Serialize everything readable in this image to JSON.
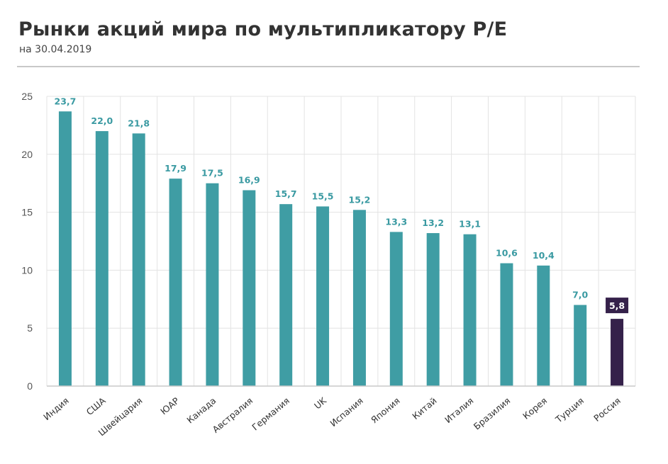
{
  "header": {
    "title": "Рынки акций мира по мультипликатору P/E",
    "subtitle": "на 30.04.2019"
  },
  "colors": {
    "bar": "#3f9da4",
    "highlight_bar": "#35214a",
    "label": "#3a9aa2",
    "highlight_label_text": "#ffffff",
    "grid": "#e3e3e3"
  },
  "chart_data": {
    "type": "bar",
    "title": "Рынки акций мира по мультипликатору P/E",
    "subtitle": "на 30.04.2019",
    "xlabel": "",
    "ylabel": "",
    "ylim": [
      0,
      25
    ],
    "yticks": [
      "0",
      "5",
      "10",
      "15",
      "20",
      "25"
    ],
    "grid": true,
    "legend": "none",
    "categories": [
      "Индия",
      "США",
      "Швейцария",
      "ЮАР",
      "Канада",
      "Австралия",
      "Германия",
      "UK",
      "Испания",
      "Япония",
      "Китай",
      "Италия",
      "Бразилия",
      "Корея",
      "Турция",
      "Россия"
    ],
    "values": [
      23.7,
      22.0,
      21.8,
      17.9,
      17.5,
      16.9,
      15.7,
      15.5,
      15.2,
      13.3,
      13.2,
      13.1,
      10.6,
      10.4,
      7.0,
      5.8
    ],
    "value_labels": [
      "23,7",
      "22,0",
      "21,8",
      "17,9",
      "17,5",
      "16,9",
      "15,7",
      "15,5",
      "15,2",
      "13,3",
      "13,2",
      "13,1",
      "10,6",
      "10,4",
      "7,0",
      "5,8"
    ],
    "highlight": "Россия"
  }
}
